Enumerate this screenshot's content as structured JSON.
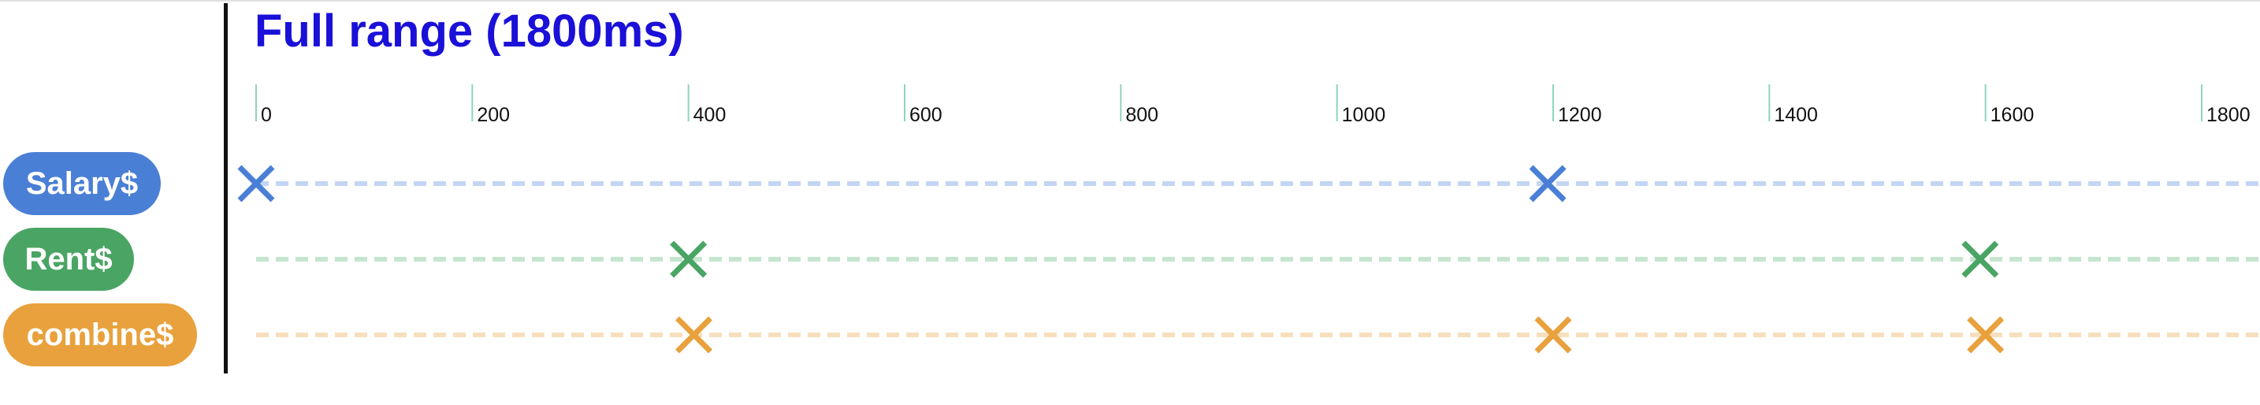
{
  "chart_data": {
    "type": "marble-timeline",
    "title": "Full range (1800ms)",
    "x_unit": "ms",
    "x_range": [
      0,
      1800
    ],
    "ticks": [
      0,
      200,
      400,
      600,
      800,
      1000,
      1200,
      1400,
      1600,
      1800
    ],
    "tick_labels": [
      "0",
      "200",
      "400",
      "600",
      "800",
      "1000",
      "1200",
      "1400",
      "1600",
      "1800"
    ],
    "series": [
      {
        "name": "Salary$",
        "color": "#4a7fd6",
        "line_color": "#c3d5f3",
        "events": [
          0,
          1195
        ]
      },
      {
        "name": "Rent$",
        "color": "#4aa564",
        "line_color": "#c6e5cf",
        "events": [
          400,
          1595
        ]
      },
      {
        "name": "combine$",
        "color": "#e8a13c",
        "line_color": "#f7dfbd",
        "events": [
          405,
          1200,
          1600
        ]
      }
    ]
  }
}
